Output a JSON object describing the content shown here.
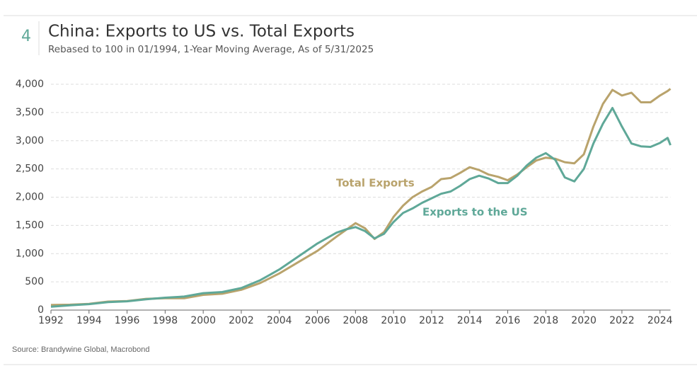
{
  "chart_data": {
    "type": "line",
    "figure_number": "4",
    "title": "China: Exports to US vs. Total Exports",
    "subtitle": "Rebased to 100 in 01/1994, 1-Year Moving Average, As of 5/31/2025",
    "source": "Source: Brandywine Global, Macrobond",
    "x": [
      1992,
      1993,
      1994,
      1995,
      1996,
      1997,
      1998,
      1999,
      2000,
      2001,
      2002,
      2003,
      2004,
      2005,
      2006,
      2007,
      2007.5,
      2008,
      2008.5,
      2009,
      2009.5,
      2010,
      2010.5,
      2011,
      2011.5,
      2012,
      2012.5,
      2013,
      2013.5,
      2014,
      2014.5,
      2015,
      2015.5,
      2016,
      2016.5,
      2017,
      2017.5,
      2018,
      2018.5,
      2019,
      2019.5,
      2020,
      2020.5,
      2021,
      2021.5,
      2022,
      2022.5,
      2023,
      2023.5,
      2024,
      2024.4,
      2024.55
    ],
    "series": [
      {
        "name": "Total Exports",
        "color": "#b9a36c",
        "values": [
          90,
          95,
          110,
          150,
          160,
          200,
          210,
          210,
          270,
          290,
          360,
          480,
          650,
          850,
          1050,
          1300,
          1420,
          1540,
          1450,
          1260,
          1380,
          1650,
          1850,
          2000,
          2100,
          2180,
          2320,
          2340,
          2430,
          2530,
          2480,
          2400,
          2360,
          2300,
          2400,
          2530,
          2650,
          2700,
          2680,
          2620,
          2600,
          2760,
          3250,
          3650,
          3900,
          3800,
          3850,
          3680,
          3680,
          3800,
          3880,
          3920
        ]
      },
      {
        "name": "Exports to the US",
        "color": "#5fa898",
        "values": [
          60,
          85,
          105,
          140,
          155,
          190,
          220,
          240,
          300,
          320,
          390,
          530,
          720,
          950,
          1180,
          1370,
          1430,
          1470,
          1400,
          1270,
          1350,
          1560,
          1720,
          1800,
          1900,
          1980,
          2060,
          2100,
          2200,
          2320,
          2380,
          2330,
          2250,
          2250,
          2380,
          2560,
          2700,
          2780,
          2660,
          2350,
          2280,
          2500,
          2950,
          3300,
          3580,
          3250,
          2950,
          2900,
          2890,
          2960,
          3050,
          2920
        ]
      }
    ],
    "xlim": [
      1992,
      2024.55
    ],
    "ylim": [
      0,
      4000
    ],
    "xticks": [
      1992,
      1994,
      1996,
      1998,
      2000,
      2002,
      2004,
      2006,
      2008,
      2010,
      2012,
      2014,
      2016,
      2018,
      2020,
      2022,
      2024
    ],
    "yticks": [
      0,
      500,
      {
        "value": 1000,
        "label": "1,000"
      },
      {
        "value": 1500,
        "label": "1,500"
      },
      {
        "value": 2000,
        "label": "2,000"
      },
      {
        "value": 2500,
        "label": "2,500"
      },
      {
        "value": 3000,
        "label": "3,000"
      },
      {
        "value": 3500,
        "label": "3,500"
      },
      {
        "value": 4000,
        "label": "4,000"
      }
    ],
    "grid": true
  }
}
